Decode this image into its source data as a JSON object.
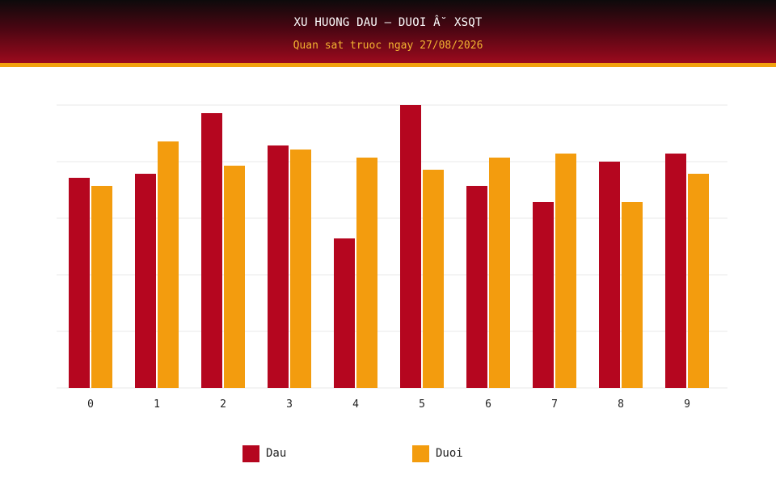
{
  "header": {
    "title": "XU HUONG DAU – DUOI Â˘ XSQT",
    "subtitle": "Quan sat truoc ngay 27/08/2026"
  },
  "colors": {
    "dau": "#b5061f",
    "duoi": "#f39c0e",
    "grid": "#e9e9e9"
  },
  "chart_data": {
    "type": "bar",
    "categories": [
      "0",
      "1",
      "2",
      "3",
      "4",
      "5",
      "6",
      "7",
      "8",
      "9"
    ],
    "series": [
      {
        "name": "Dau",
        "color": "#b5061f",
        "values": [
          52,
          53,
          68,
          60,
          37,
          70,
          50,
          46,
          56,
          58
        ]
      },
      {
        "name": "Duoi",
        "color": "#f39c0e",
        "values": [
          50,
          61,
          55,
          59,
          57,
          54,
          57,
          58,
          46,
          53
        ]
      }
    ],
    "ylim": [
      0,
      70
    ],
    "y_gridlines": [
      0,
      14,
      28,
      42,
      56,
      70
    ],
    "y_tick_labels_visible": false,
    "grid": true,
    "legend": "bottom-center"
  }
}
